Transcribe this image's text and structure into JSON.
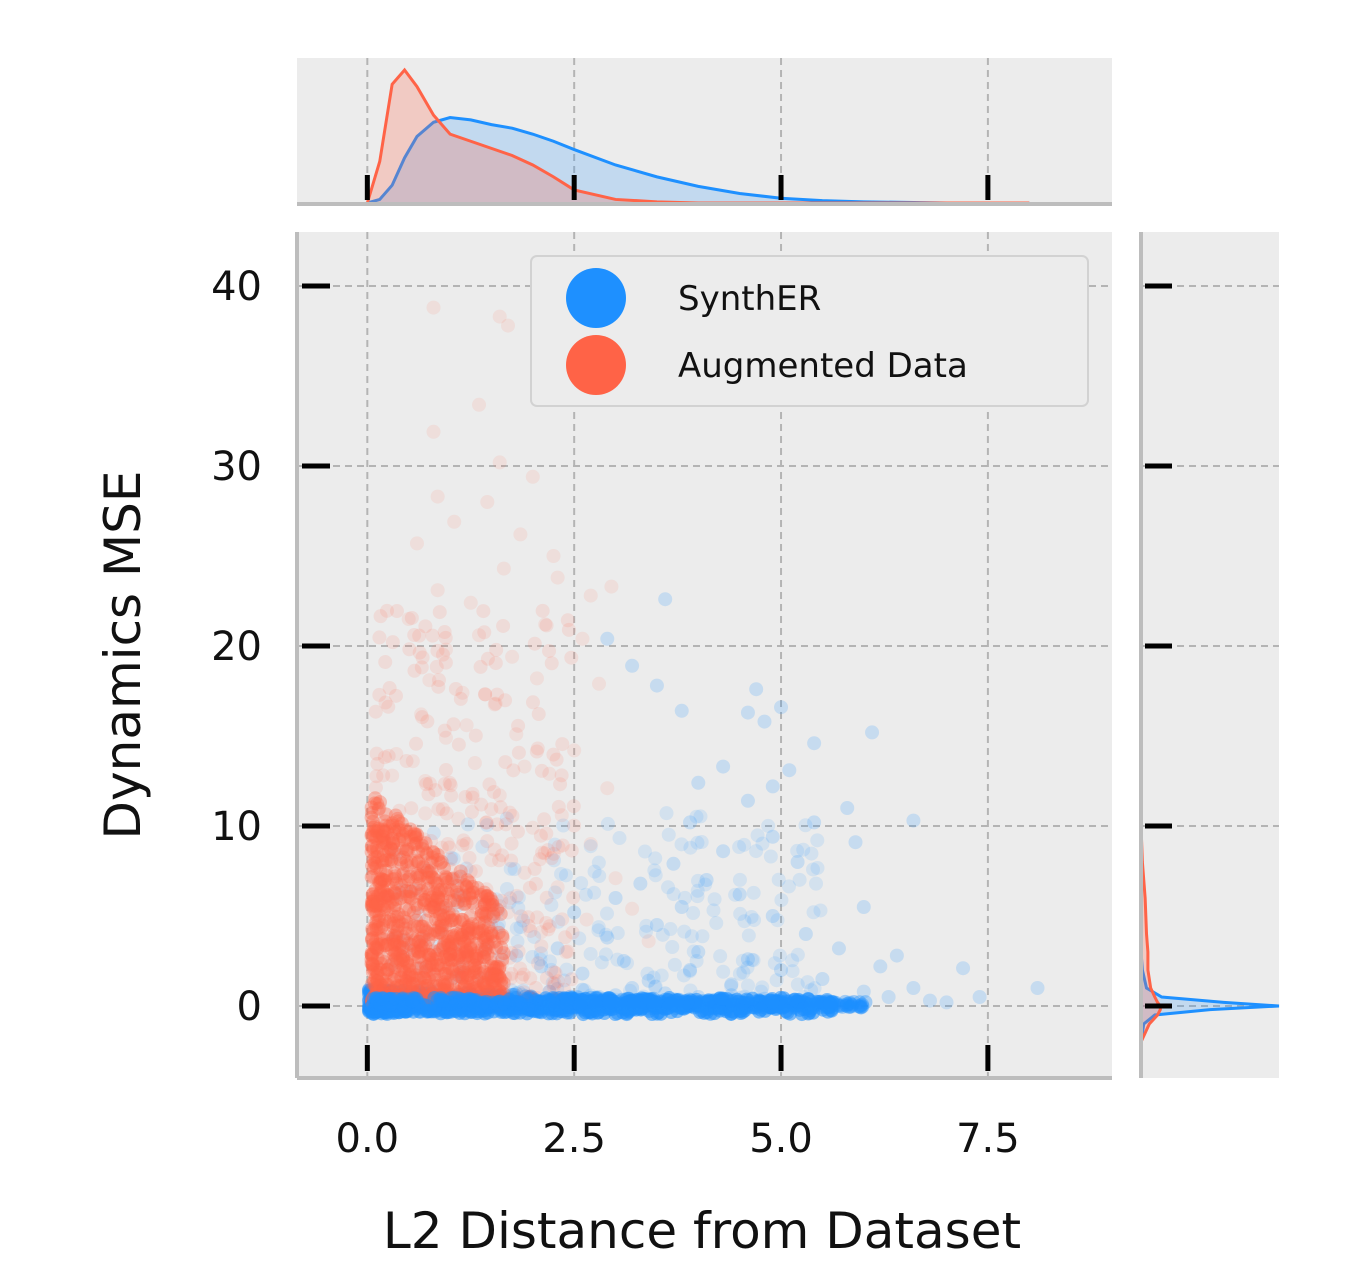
{
  "chart_data": {
    "type": "scatter",
    "title": "",
    "xlabel": "L2 Distance from Dataset",
    "ylabel": "Dynamics MSE",
    "xlim": [
      -0.85,
      9.0
    ],
    "ylim": [
      -4.0,
      43.0
    ],
    "xticks": [
      {
        "value": 0.0,
        "label": "0.0"
      },
      {
        "value": 2.5,
        "label": "2.5"
      },
      {
        "value": 5.0,
        "label": "5.0"
      },
      {
        "value": 7.5,
        "label": "7.5"
      }
    ],
    "yticks": [
      {
        "value": 0,
        "label": "0"
      },
      {
        "value": 10,
        "label": "10"
      },
      {
        "value": 20,
        "label": "20"
      },
      {
        "value": 30,
        "label": "30"
      },
      {
        "value": 40,
        "label": "40"
      }
    ],
    "grid": true,
    "legend_position": "top-right",
    "series": [
      {
        "name": "SynthER",
        "color": "#1E90FF",
        "points": [
          [
            0.2,
            0.1
          ],
          [
            0.35,
            0.3
          ],
          [
            0.5,
            0.2
          ],
          [
            0.65,
            0.4
          ],
          [
            0.8,
            0.1
          ],
          [
            1.0,
            0.5
          ],
          [
            1.2,
            0.3
          ],
          [
            1.4,
            0.6
          ],
          [
            1.6,
            0.2
          ],
          [
            1.8,
            0.7
          ],
          [
            2.0,
            0.4
          ],
          [
            2.2,
            0.8
          ],
          [
            2.4,
            0.3
          ],
          [
            2.6,
            0.9
          ],
          [
            2.8,
            0.5
          ],
          [
            3.0,
            0.6
          ],
          [
            3.2,
            1.0
          ],
          [
            3.4,
            0.4
          ],
          [
            3.6,
            0.7
          ],
          [
            3.8,
            0.3
          ],
          [
            4.0,
            0.5
          ],
          [
            4.2,
            0.2
          ],
          [
            4.4,
            0.6
          ],
          [
            4.6,
            0.3
          ],
          [
            4.8,
            0.4
          ],
          [
            5.0,
            0.2
          ],
          [
            5.2,
            0.3
          ],
          [
            5.4,
            0.1
          ],
          [
            5.6,
            0.2
          ],
          [
            5.8,
            0.1
          ],
          [
            1.5,
            1.6
          ],
          [
            2.1,
            2.2
          ],
          [
            2.6,
            1.8
          ],
          [
            3.1,
            2.5
          ],
          [
            3.4,
            1.4
          ],
          [
            3.9,
            2.0
          ],
          [
            4.4,
            1.2
          ],
          [
            2.3,
            3.2
          ],
          [
            2.9,
            3.8
          ],
          [
            3.5,
            4.5
          ],
          [
            4.0,
            3.0
          ],
          [
            4.6,
            2.6
          ],
          [
            5.0,
            2.0
          ],
          [
            5.5,
            1.5
          ],
          [
            6.0,
            0.8
          ],
          [
            6.3,
            0.5
          ],
          [
            6.8,
            0.3
          ],
          [
            7.0,
            0.2
          ],
          [
            1.8,
            2.8
          ],
          [
            2.5,
            5.2
          ],
          [
            3.0,
            6.0
          ],
          [
            3.3,
            6.8
          ],
          [
            3.8,
            5.5
          ],
          [
            4.1,
            7.0
          ],
          [
            4.5,
            6.2
          ],
          [
            4.9,
            5.0
          ],
          [
            5.3,
            4.0
          ],
          [
            5.7,
            3.2
          ],
          [
            6.2,
            2.2
          ],
          [
            6.6,
            1.0
          ],
          [
            7.4,
            0.5
          ],
          [
            8.1,
            1.0
          ],
          [
            3.7,
            7.9
          ],
          [
            4.3,
            8.6
          ],
          [
            4.9,
            9.4
          ],
          [
            5.4,
            10.2
          ],
          [
            5.8,
            11.0
          ],
          [
            4.0,
            12.4
          ],
          [
            4.3,
            13.3
          ],
          [
            5.1,
            13.1
          ],
          [
            5.4,
            14.6
          ],
          [
            4.6,
            16.3
          ],
          [
            4.8,
            15.8
          ],
          [
            5.0,
            16.6
          ],
          [
            3.5,
            17.8
          ],
          [
            3.8,
            16.4
          ],
          [
            4.7,
            17.6
          ],
          [
            6.1,
            15.2
          ],
          [
            3.6,
            22.6
          ],
          [
            2.9,
            20.4
          ],
          [
            3.2,
            18.9
          ],
          [
            4.9,
            12.2
          ],
          [
            5.9,
            9.1
          ],
          [
            6.6,
            10.3
          ],
          [
            6.0,
            5.5
          ],
          [
            6.4,
            2.8
          ],
          [
            7.2,
            2.1
          ],
          [
            5.2,
            8.0
          ],
          [
            4.6,
            11.4
          ],
          [
            3.9,
            10.2
          ]
        ]
      },
      {
        "name": "Augmented Data",
        "color": "#FF6347",
        "points": [
          [
            0.1,
            2.0
          ],
          [
            0.2,
            5.0
          ],
          [
            0.3,
            8.0
          ],
          [
            0.15,
            11.0
          ],
          [
            0.4,
            3.5
          ],
          [
            0.5,
            6.5
          ],
          [
            0.6,
            9.5
          ],
          [
            0.7,
            12.5
          ],
          [
            0.35,
            14.0
          ],
          [
            0.25,
            4.0
          ],
          [
            0.45,
            7.2
          ],
          [
            0.55,
            2.8
          ],
          [
            0.8,
            5.5
          ],
          [
            0.9,
            8.8
          ],
          [
            1.0,
            3.2
          ],
          [
            1.1,
            10.4
          ],
          [
            1.2,
            6.0
          ],
          [
            1.3,
            13.5
          ],
          [
            1.4,
            4.6
          ],
          [
            1.5,
            8.1
          ],
          [
            1.6,
            11.7
          ],
          [
            1.7,
            5.2
          ],
          [
            1.8,
            15.1
          ],
          [
            1.9,
            7.4
          ],
          [
            2.0,
            9.9
          ],
          [
            2.1,
            4.1
          ],
          [
            2.2,
            12.9
          ],
          [
            2.3,
            6.6
          ],
          [
            2.4,
            3.0
          ],
          [
            0.65,
            16.2
          ],
          [
            0.75,
            18.1
          ],
          [
            0.95,
            19.8
          ],
          [
            1.15,
            17.4
          ],
          [
            1.35,
            20.6
          ],
          [
            1.55,
            16.8
          ],
          [
            1.75,
            19.4
          ],
          [
            2.05,
            18.2
          ],
          [
            0.5,
            21.5
          ],
          [
            0.85,
            23.1
          ],
          [
            1.25,
            22.4
          ],
          [
            1.65,
            24.3
          ],
          [
            2.15,
            21.2
          ],
          [
            2.3,
            23.8
          ],
          [
            0.6,
            25.7
          ],
          [
            1.05,
            26.9
          ],
          [
            1.45,
            28.0
          ],
          [
            1.85,
            26.2
          ],
          [
            2.25,
            25.0
          ],
          [
            0.85,
            28.3
          ],
          [
            1.6,
            30.2
          ],
          [
            2.0,
            29.4
          ],
          [
            0.8,
            31.9
          ],
          [
            1.35,
            33.4
          ],
          [
            0.8,
            38.8
          ],
          [
            1.6,
            38.3
          ],
          [
            1.7,
            37.8
          ],
          [
            2.7,
            22.8
          ],
          [
            2.95,
            23.3
          ],
          [
            2.6,
            20.4
          ],
          [
            2.8,
            17.9
          ],
          [
            2.5,
            14.2
          ],
          [
            2.9,
            12.1
          ],
          [
            2.7,
            9.0
          ],
          [
            3.0,
            7.1
          ],
          [
            3.2,
            5.4
          ],
          [
            3.4,
            3.6
          ],
          [
            2.65,
            4.8
          ],
          [
            0.2,
            1.0
          ],
          [
            0.4,
            0.8
          ],
          [
            0.3,
            12.8
          ],
          [
            0.55,
            13.6
          ],
          [
            0.95,
            14.9
          ],
          [
            1.2,
            15.6
          ],
          [
            0.7,
            10.7
          ],
          [
            1.9,
            13.3
          ],
          [
            2.35,
            10.6
          ],
          [
            0.15,
            6.8
          ],
          [
            0.45,
            9.2
          ],
          [
            1.0,
            7.6
          ],
          [
            1.5,
            2.4
          ]
        ]
      }
    ],
    "top_density": {
      "x": [
        0.0,
        0.15,
        0.3,
        0.45,
        0.6,
        0.8,
        1.0,
        1.25,
        1.5,
        1.75,
        2.0,
        2.25,
        2.5,
        3.0,
        3.5,
        4.0,
        4.5,
        5.0,
        5.5,
        6.0,
        7.0,
        8.0
      ],
      "SynthER": [
        0.0,
        0.03,
        0.15,
        0.38,
        0.56,
        0.68,
        0.72,
        0.7,
        0.66,
        0.63,
        0.58,
        0.52,
        0.45,
        0.32,
        0.22,
        0.14,
        0.08,
        0.04,
        0.02,
        0.01,
        0.0,
        0.0
      ],
      "Augmented Data": [
        0.0,
        0.35,
        1.0,
        1.12,
        0.98,
        0.74,
        0.58,
        0.52,
        0.46,
        0.4,
        0.32,
        0.22,
        0.11,
        0.03,
        0.01,
        0.0,
        0.0,
        0.0,
        0.0,
        0.0,
        0.0,
        0.0
      ]
    },
    "right_density": {
      "y": [
        -2.0,
        -1.0,
        -0.5,
        -0.2,
        0.0,
        0.2,
        0.5,
        1.0,
        2.0,
        3.0,
        4.0,
        5.0,
        6.0,
        7.0,
        8.0,
        9.0,
        10.0
      ],
      "SynthER": [
        0.0,
        0.02,
        0.1,
        0.5,
        1.0,
        0.6,
        0.15,
        0.04,
        0.01,
        0.0,
        0.0,
        0.0,
        0.0,
        0.0,
        0.0,
        0.0,
        0.0
      ],
      "Augmented Data": [
        0.0,
        0.06,
        0.12,
        0.14,
        0.14,
        0.12,
        0.1,
        0.07,
        0.05,
        0.05,
        0.04,
        0.035,
        0.03,
        0.02,
        0.01,
        0.005,
        0.0
      ]
    }
  }
}
